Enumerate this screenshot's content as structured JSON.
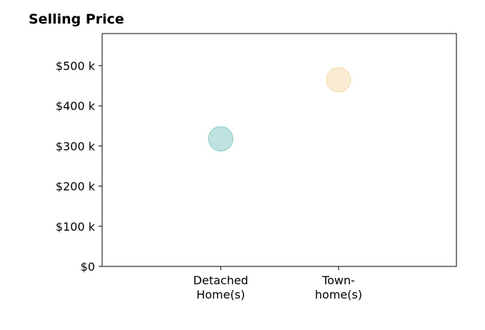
{
  "chart_data": {
    "type": "scatter",
    "title": "Selling Price",
    "xlabel": "",
    "ylabel": "",
    "categories": [
      [
        "Detached",
        "Home(s)"
      ],
      [
        "Town-",
        "home(s)"
      ]
    ],
    "values": [
      318000,
      465000
    ],
    "point_colors": [
      "#a8dad6",
      "#f7e6c4"
    ],
    "point_edge_colors": [
      "#8fcfca",
      "#f3dbab"
    ],
    "yticks": [
      {
        "value": 0,
        "label": "$0"
      },
      {
        "value": 100000,
        "label": "$100 k"
      },
      {
        "value": 200000,
        "label": "$200 k"
      },
      {
        "value": 300000,
        "label": "$300 k"
      },
      {
        "value": 400000,
        "label": "$400 k"
      },
      {
        "value": 500000,
        "label": "$500 k"
      }
    ],
    "ylim": [
      0,
      580000
    ],
    "grid": false,
    "legend": "none"
  }
}
